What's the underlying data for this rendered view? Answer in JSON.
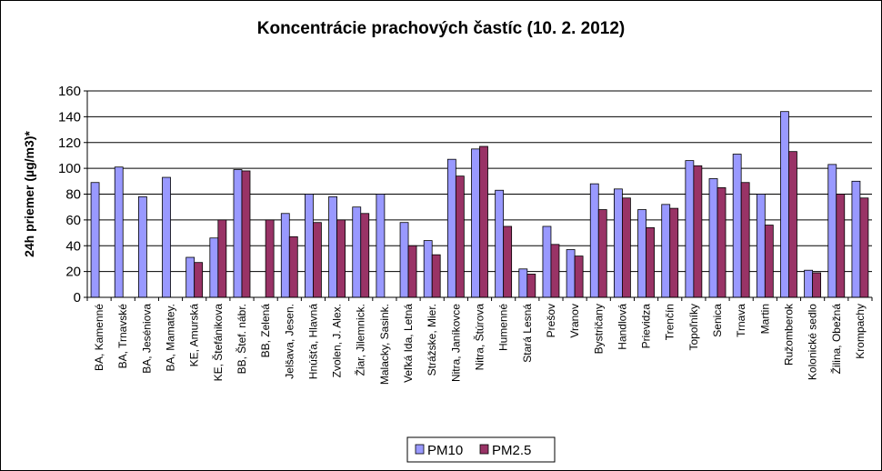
{
  "chart_data": {
    "type": "bar",
    "title": "Koncentrácie prachových častíc (10. 2. 2012)",
    "ylabel": "24h priemer (µg/m3)*",
    "ylim": [
      0,
      160
    ],
    "yticks": [
      "0",
      "20",
      "40",
      "60",
      "80",
      "100",
      "120",
      "140",
      "160"
    ],
    "grid": true,
    "legend": "bottom",
    "categories": [
      "BA, Kamenné",
      "BA, Trnavské",
      "BA, Jeséniova",
      "BA, Mamatey.",
      "KE, Amurská",
      "KE, Štefánikova",
      "BB, Štef. nábr.",
      "BB, Zelená",
      "Jelšava, Jesen.",
      "Hnúšťa, Hlavná",
      "Zvolen, J. Alex.",
      "Žiar, Jilemnick.",
      "Malacky, Sasink.",
      "Veľká Ida, Letná",
      "Strážske, Mier.",
      "Nitra, Janíkovce",
      "Nitra, Štúrova",
      "Humenné",
      "Stará Lesná",
      "Prešov",
      "Vranov",
      "Bystričany",
      "Handlová",
      "Prievidza",
      "Trenčín",
      "Topoľníky",
      "Senica",
      "Trnava",
      "Martin",
      "Ružomberok",
      "Kolonické sedlo",
      "Žilina, Obežná",
      "Krompachy"
    ],
    "series": [
      {
        "name": "PM10",
        "color": "#9999ff",
        "values": [
          89,
          101,
          78,
          93,
          31,
          46,
          99,
          null,
          65,
          80,
          78,
          70,
          80,
          58,
          44,
          107,
          115,
          83,
          22,
          55,
          37,
          88,
          84,
          68,
          72,
          106,
          92,
          111,
          80,
          144,
          21,
          103,
          90
        ]
      },
      {
        "name": "PM2.5",
        "color": "#993366",
        "values": [
          null,
          null,
          null,
          null,
          27,
          60,
          98,
          60,
          47,
          58,
          60,
          65,
          null,
          40,
          33,
          94,
          117,
          55,
          18,
          41,
          32,
          68,
          77,
          54,
          69,
          102,
          85,
          89,
          56,
          113,
          19,
          80,
          77
        ]
      }
    ]
  }
}
